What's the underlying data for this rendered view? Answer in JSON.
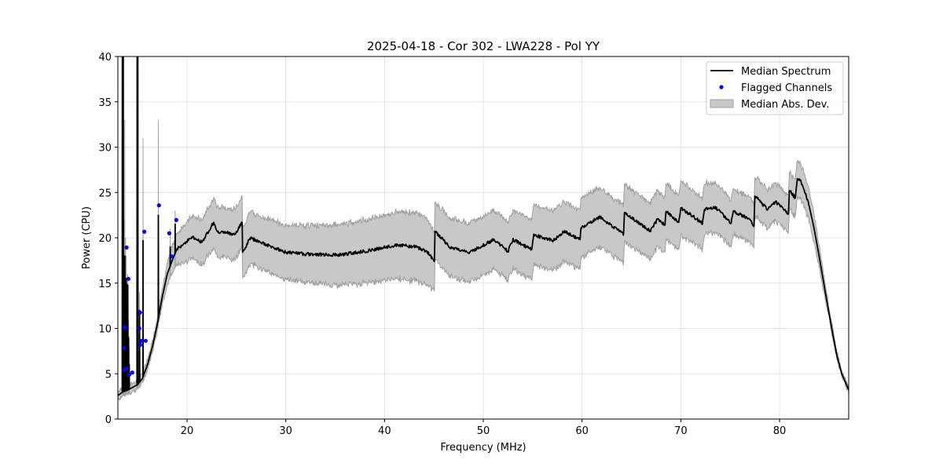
{
  "chart_data": {
    "type": "line",
    "title": "2025-04-18 - Cor 302 - LWA228 - Pol YY",
    "xlabel": "Frequency (MHz)",
    "ylabel": "Power (CPU)",
    "xlim": [
      13,
      87
    ],
    "ylim": [
      0,
      40
    ],
    "xticks": [
      20,
      30,
      40,
      50,
      60,
      70,
      80
    ],
    "yticks": [
      0,
      5,
      10,
      15,
      20,
      25,
      30,
      35,
      40
    ],
    "grid": true,
    "legend_position": "top-right",
    "legend": [
      "Median Spectrum",
      "Flagged Channels",
      "Median Abs. Dev."
    ],
    "colors": {
      "median": "#000000",
      "flagged": "#0000ff",
      "band": "#c8c8c8",
      "band_edge": "#a0a0a0"
    },
    "median_spectrum": [
      [
        13.0,
        2.6
      ],
      [
        13.5,
        3.0
      ],
      [
        14.0,
        3.2
      ],
      [
        14.5,
        3.5
      ],
      [
        15.0,
        3.8
      ],
      [
        15.5,
        4.5
      ],
      [
        16.0,
        6.0
      ],
      [
        16.5,
        8.0
      ],
      [
        17.0,
        10.5
      ],
      [
        17.5,
        13.5
      ],
      [
        18.0,
        16.0
      ],
      [
        18.5,
        17.5
      ],
      [
        19.0,
        18.8
      ],
      [
        19.3,
        19.0
      ],
      [
        20.5,
        20.1
      ],
      [
        21.5,
        19.5
      ],
      [
        22.7,
        21.7
      ],
      [
        23.05,
        20.7
      ],
      [
        24.9,
        20.4
      ],
      [
        25.58,
        21.7
      ],
      [
        25.63,
        18.4
      ],
      [
        26.4,
        20.0
      ],
      [
        28.1,
        19.2
      ],
      [
        30.0,
        18.4
      ],
      [
        32.1,
        18.2
      ],
      [
        35.3,
        18.1
      ],
      [
        37.9,
        18.5
      ],
      [
        41.4,
        19.2
      ],
      [
        43.2,
        19.0
      ],
      [
        44.3,
        18.5
      ],
      [
        45.05,
        17.4
      ],
      [
        45.11,
        20.7
      ],
      [
        46.7,
        18.9
      ],
      [
        48.6,
        18.4
      ],
      [
        51.1,
        19.8
      ],
      [
        52.5,
        18.5
      ],
      [
        53.0,
        19.8
      ],
      [
        54.9,
        18.7
      ],
      [
        55.1,
        20.3
      ],
      [
        57.1,
        19.7
      ],
      [
        58.2,
        20.7
      ],
      [
        59.8,
        19.8
      ],
      [
        59.9,
        21.1
      ],
      [
        61.8,
        22.3
      ],
      [
        64.2,
        20.4
      ],
      [
        64.3,
        22.8
      ],
      [
        66.9,
        20.7
      ],
      [
        67.7,
        22.1
      ],
      [
        68.4,
        21.4
      ],
      [
        68.5,
        22.9
      ],
      [
        69.8,
        21.7
      ],
      [
        70.0,
        23.3
      ],
      [
        72.2,
        21.6
      ],
      [
        72.4,
        23.1
      ],
      [
        73.5,
        23.4
      ],
      [
        75.1,
        21.6
      ],
      [
        75.3,
        22.9
      ],
      [
        76.9,
        22.1
      ],
      [
        77.4,
        21.3
      ],
      [
        77.5,
        24.6
      ],
      [
        78.8,
        23.1
      ],
      [
        79.6,
        24.0
      ],
      [
        80.9,
        22.7
      ],
      [
        81.0,
        25.2
      ],
      [
        81.6,
        24.4
      ],
      [
        81.8,
        26.5
      ],
      [
        82.1,
        26.3
      ],
      [
        82.9,
        24.0
      ],
      [
        83.5,
        21.0
      ],
      [
        84.0,
        18.0
      ],
      [
        84.6,
        14.2
      ],
      [
        85.2,
        10.5
      ],
      [
        85.8,
        7.0
      ],
      [
        86.3,
        5.0
      ],
      [
        87.0,
        3.2
      ]
    ],
    "mad_halfwidth": [
      [
        13.0,
        0.4
      ],
      [
        16.0,
        0.5
      ],
      [
        17.5,
        0.8
      ],
      [
        18.5,
        1.5
      ],
      [
        20.0,
        2.2
      ],
      [
        22.7,
        2.7
      ],
      [
        25.5,
        2.8
      ],
      [
        30.0,
        3.0
      ],
      [
        35.0,
        3.3
      ],
      [
        44.0,
        3.8
      ],
      [
        45.1,
        3.2
      ],
      [
        60.0,
        3.3
      ],
      [
        70.0,
        3.0
      ],
      [
        77.4,
        2.4
      ],
      [
        77.5,
        2.1
      ],
      [
        82.0,
        2.0
      ],
      [
        83.5,
        1.5
      ],
      [
        85.0,
        0.6
      ],
      [
        87.0,
        0.2
      ]
    ],
    "spikes": [
      [
        13.45,
        40,
        40
      ],
      [
        13.55,
        40,
        40
      ],
      [
        13.62,
        17,
        22
      ],
      [
        13.7,
        18,
        33
      ],
      [
        13.78,
        14,
        20
      ],
      [
        13.85,
        15.5,
        18
      ],
      [
        13.92,
        12,
        15
      ],
      [
        14.0,
        14.8,
        16
      ],
      [
        14.08,
        9,
        11
      ],
      [
        14.15,
        6,
        8
      ],
      [
        14.95,
        40,
        40
      ],
      [
        15.02,
        40,
        40
      ],
      [
        15.2,
        12,
        14
      ],
      [
        15.55,
        19.7,
        31
      ],
      [
        17.1,
        22.5,
        33
      ],
      [
        18.3,
        19,
        21
      ],
      [
        18.8,
        21.5,
        23
      ]
    ],
    "flagged_channels": [
      [
        13.88,
        18.93
      ],
      [
        14.06,
        15.47
      ],
      [
        13.66,
        10.16
      ],
      [
        13.77,
        10.1
      ],
      [
        13.64,
        7.85
      ],
      [
        13.61,
        5.43
      ],
      [
        13.88,
        5.6
      ],
      [
        14.14,
        4.9
      ],
      [
        14.46,
        5.13
      ],
      [
        15.68,
        20.67
      ],
      [
        15.25,
        11.75
      ],
      [
        15.17,
        10.0
      ],
      [
        15.36,
        8.63
      ],
      [
        15.28,
        8.2
      ],
      [
        15.81,
        8.63
      ],
      [
        17.16,
        23.58
      ],
      [
        18.2,
        20.5
      ],
      [
        18.44,
        17.95
      ],
      [
        18.92,
        21.96
      ]
    ]
  }
}
